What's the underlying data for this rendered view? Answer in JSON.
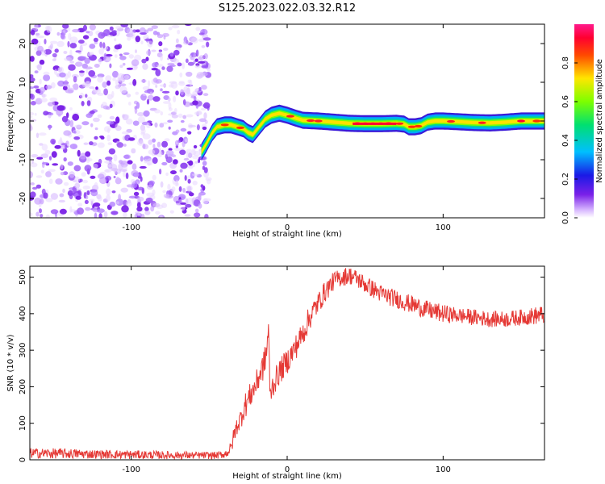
{
  "figure_title": "S125.2023.022.03.32.R12",
  "chart_data": [
    {
      "type": "heatmap",
      "xlabel": "Height of straight line (km)",
      "ylabel": "Frequency (Hz)",
      "xlim": [
        -165,
        165
      ],
      "ylim": [
        -25,
        25
      ],
      "x_ticks": [
        -100,
        0,
        100
      ],
      "y_ticks": [
        -20,
        -10,
        0,
        10,
        20
      ],
      "colorbar": {
        "label": "Normalized spectral amplitude",
        "range": [
          0,
          1
        ],
        "ticks": [
          "0.0",
          "0.2",
          "0.4",
          "0.6",
          "0.8"
        ],
        "colormap": [
          "#e0c0ff",
          "#8020e0",
          "#2020e0",
          "#00c0ff",
          "#00e060",
          "#c0ff00",
          "#ffe000",
          "#ff5000",
          "#ff0030",
          "#ff00a0"
        ]
      },
      "noise_region": {
        "x": [
          -165,
          -50
        ],
        "description_color": "#8a3df0"
      },
      "ridge": {
        "x": [
          -55,
          -52,
          -48,
          -45,
          -40,
          -36,
          -32,
          -28,
          -25,
          -22,
          -18,
          -14,
          -10,
          -5,
          0,
          5,
          10,
          20,
          30,
          40,
          50,
          60,
          70,
          75,
          78,
          82,
          86,
          90,
          95,
          100,
          110,
          120,
          130,
          140,
          150,
          160,
          165
        ],
        "y": [
          -8,
          -6,
          -3,
          -1.5,
          -1,
          -1,
          -1.5,
          -2,
          -3,
          -3.5,
          -1.5,
          0.5,
          1.5,
          2,
          1.5,
          0.8,
          0.2,
          0,
          -0.3,
          -0.6,
          -0.7,
          -0.7,
          -0.6,
          -0.8,
          -1.5,
          -1.5,
          -1.2,
          -0.3,
          0,
          0,
          -0.2,
          -0.4,
          -0.5,
          -0.3,
          0,
          0,
          0
        ]
      }
    },
    {
      "type": "line",
      "xlabel": "Height of straight line (km)",
      "ylabel": "SNR (10 * v/v)",
      "xlim": [
        -165,
        165
      ],
      "ylim": [
        0,
        530
      ],
      "x_ticks": [
        -100,
        0,
        100
      ],
      "y_ticks": [
        0,
        100,
        200,
        300,
        400,
        500
      ],
      "color": "#e53935",
      "series": [
        {
          "x": [
            -165,
            -140,
            -120,
            -100,
            -80,
            -60,
            -45,
            -40,
            -36,
            -34,
            -32,
            -30,
            -28,
            -25,
            -22,
            -20,
            -18,
            -15,
            -13,
            -12,
            -11,
            -10,
            -8,
            -5,
            0,
            5,
            10,
            15,
            20,
            25,
            30,
            35,
            40,
            45,
            50,
            60,
            70,
            80,
            90,
            100,
            110,
            120,
            130,
            140,
            150,
            160,
            165
          ],
          "y": [
            18,
            17,
            15,
            14,
            13,
            12,
            12,
            15,
            30,
            70,
            95,
            110,
            140,
            165,
            190,
            205,
            230,
            260,
            300,
            370,
            170,
            195,
            215,
            240,
            270,
            305,
            345,
            395,
            430,
            465,
            490,
            500,
            505,
            495,
            480,
            455,
            440,
            425,
            410,
            400,
            395,
            390,
            385,
            385,
            390,
            395,
            398
          ],
          "noise_amplitude": [
            14,
            14,
            12,
            12,
            11,
            10,
            10,
            10,
            20,
            25,
            25,
            30,
            35,
            35,
            35,
            35,
            40,
            40,
            40,
            30,
            30,
            35,
            35,
            35,
            35,
            35,
            35,
            35,
            30,
            30,
            25,
            25,
            25,
            25,
            25,
            25,
            25,
            25,
            25,
            25,
            22,
            22,
            22,
            22,
            22,
            25,
            25
          ]
        }
      ]
    }
  ]
}
